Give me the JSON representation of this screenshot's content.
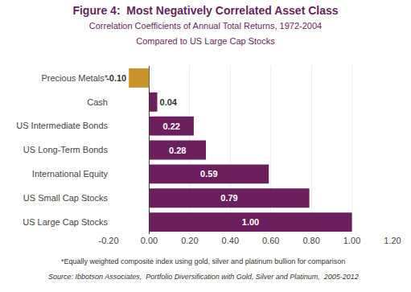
{
  "chart_data": {
    "type": "bar",
    "orientation": "horizontal",
    "title": "Figure 4:  Most Negatively Correlated Asset Class",
    "subtitle": "Correlation Coefficients of Annual Total Returns, 1972-2004\nCompared to US Large Cap Stocks",
    "categories": [
      "US Large Cap Stocks",
      "US Small Cap Stocks",
      "International Equity",
      "US Long-Term Bonds",
      "US Intermediate Bonds",
      "Cash",
      "Precious Metals*"
    ],
    "values": [
      1.0,
      0.79,
      0.59,
      0.28,
      0.22,
      0.04,
      -0.1
    ],
    "value_labels": [
      "1.00",
      "0.79",
      "0.59",
      "0.28",
      "0.22",
      "0.04",
      "-0.10"
    ],
    "colors": [
      "#6B1F5E",
      "#6B1F5E",
      "#6B1F5E",
      "#6B1F5E",
      "#6B1F5E",
      "#6B1F5E",
      "#C9922A"
    ],
    "xlim": [
      -0.2,
      1.2
    ],
    "xticks": [
      {
        "value": -0.2,
        "label": "-0.20"
      },
      {
        "value": 0.0,
        "label": "0.00"
      },
      {
        "value": 0.2,
        "label": "0.20"
      },
      {
        "value": 0.4,
        "label": "0.40"
      },
      {
        "value": 0.6,
        "label": "0.60"
      },
      {
        "value": 0.8,
        "label": "0.80"
      },
      {
        "value": 1.0,
        "label": "1.00"
      },
      {
        "value": 1.2,
        "label": "1.20"
      }
    ],
    "grid": true,
    "data_labels": true,
    "annotations": [
      "*Equally weighted composite index using gold, silver and platinum bullion for comparison",
      "Source: Ibbotson Associates,  Portfolio Diversification with Gold, Silver and Platinum,  2005-2012"
    ]
  }
}
